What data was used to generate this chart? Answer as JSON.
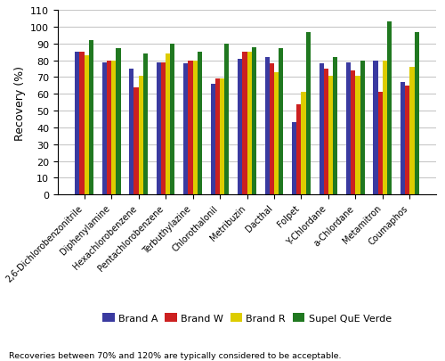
{
  "ylabel": "Recovery (%)",
  "categories": [
    "2,6-Dichlorobenzonitrile",
    "Diphenylamine",
    "Hexachlorobenzene",
    "Pentachlorobenzene",
    "Terbuthylazine",
    "Chlorothalonil",
    "Metribuzin",
    "Dacthal",
    "Folpet",
    "Y-Chlordane",
    "a-Chlordane",
    "Metamitron",
    "Coumaphos"
  ],
  "series": {
    "Brand A": [
      85,
      79,
      75,
      79,
      78,
      66,
      81,
      82,
      43,
      78,
      79,
      80,
      67
    ],
    "Brand W": [
      85,
      80,
      64,
      79,
      80,
      69,
      85,
      78,
      54,
      75,
      74,
      61,
      65
    ],
    "Brand R": [
      83,
      80,
      71,
      84,
      80,
      69,
      85,
      73,
      61,
      71,
      71,
      80,
      76
    ],
    "Supel QuE Verde": [
      92,
      87,
      84,
      90,
      85,
      90,
      88,
      87,
      97,
      82,
      80,
      103,
      97
    ]
  },
  "colors": {
    "Brand A": "#3a3aa0",
    "Brand W": "#cc2020",
    "Brand R": "#ddcc00",
    "Supel QuE Verde": "#207820"
  },
  "ylim": [
    0,
    110
  ],
  "yticks": [
    0,
    10,
    20,
    30,
    40,
    50,
    60,
    70,
    80,
    90,
    100,
    110
  ],
  "footnote": "Recoveries between 70% and 120% are typically considered to be acceptable.",
  "grid_color": "#c8c8c8",
  "bar_width": 0.17
}
